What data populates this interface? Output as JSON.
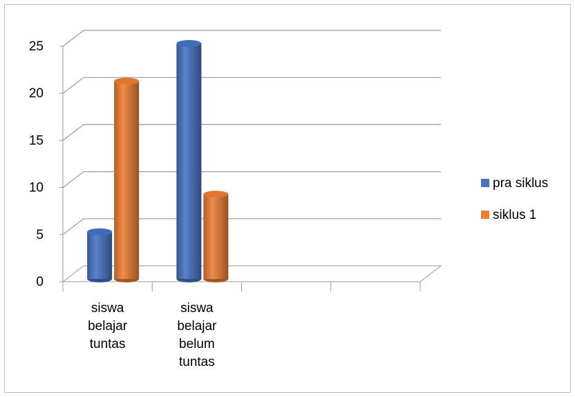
{
  "chart_data": {
    "type": "bar",
    "categories": [
      [
        "siswa",
        "belajar",
        "tuntas"
      ],
      [
        "siswa",
        "belajar",
        "belum",
        "tuntas"
      ],
      [],
      []
    ],
    "series": [
      {
        "name": "pra siklus",
        "values": [
          5,
          25,
          null,
          null
        ],
        "color": "#4472c4"
      },
      {
        "name": "siklus 1",
        "values": [
          21,
          9,
          null,
          null
        ],
        "color": "#ed7d31"
      }
    ],
    "ylim": [
      0,
      25
    ],
    "yticks": [
      0,
      5,
      10,
      15,
      20,
      25
    ],
    "grid": true,
    "legend": "right",
    "bar_shape": "3d-cylinder"
  }
}
